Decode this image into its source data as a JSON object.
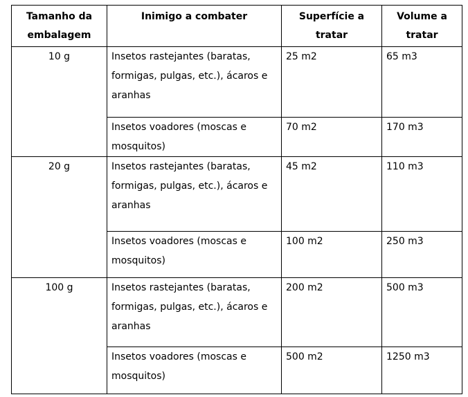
{
  "table": {
    "headers": [
      "Tamanho da embalagem",
      "Inimigo a combater",
      "Superfície a tratar",
      "Volume a tratar"
    ],
    "groups": [
      {
        "size": "10 g",
        "rows": [
          {
            "enemy": "Insetos rastejantes (baratas, formigas, pulgas, etc.), ácaros e aranhas",
            "surface": "25 m2",
            "volume": "65 m3"
          },
          {
            "enemy": "Insetos voadores (moscas e mosquitos)",
            "surface": "70 m2",
            "volume": "170 m3"
          }
        ]
      },
      {
        "size": "20 g",
        "rows": [
          {
            "enemy": "Insetos rastejantes (baratas, formigas, pulgas, etc.), ácaros e aranhas",
            "surface": "45 m2",
            "volume": "110 m3"
          },
          {
            "enemy": "Insetos voadores (moscas e mosquitos)",
            "surface": "100 m2",
            "volume": "250 m3"
          }
        ]
      },
      {
        "size": "100 g",
        "rows": [
          {
            "enemy": "Insetos rastejantes (baratas, formigas, pulgas, etc.), ácaros e aranhas",
            "surface": "200 m2",
            "volume": "500 m3"
          },
          {
            "enemy": "Insetos voadores (moscas e mosquitos)",
            "surface": "500 m2",
            "volume": "1250 m3"
          }
        ]
      }
    ]
  }
}
